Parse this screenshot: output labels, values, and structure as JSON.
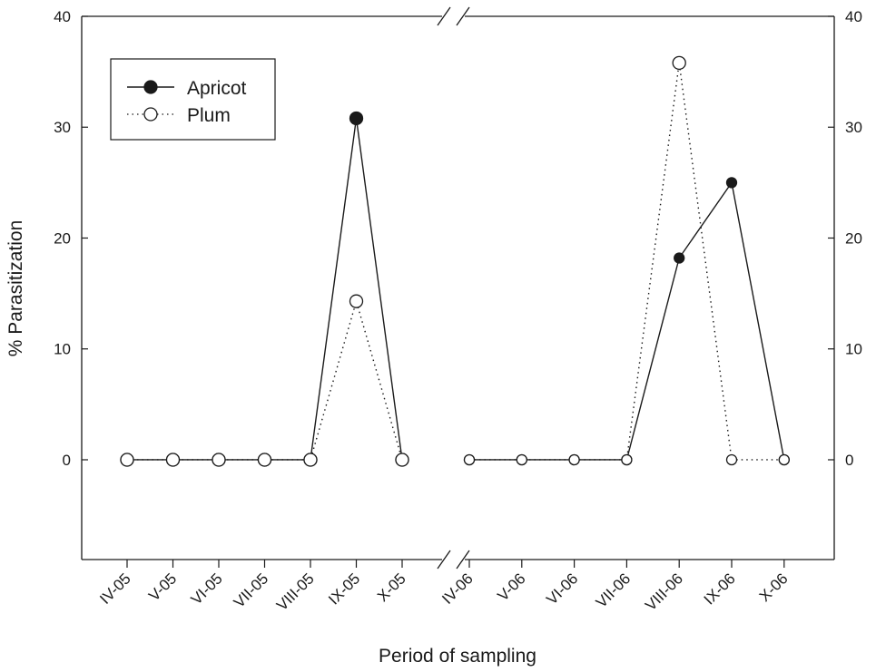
{
  "chart_data": {
    "type": "line",
    "title": "",
    "xlabel": "Period of sampling",
    "ylabel": "% Parasitization",
    "ylim": [
      -9,
      40
    ],
    "y_ticks": [
      0,
      10,
      20,
      30,
      40
    ],
    "y_tick_labels": [
      "0",
      "10",
      "20",
      "30",
      "40"
    ],
    "right_axis_labels": true,
    "axis_break_between": [
      "X-05",
      "IV-06"
    ],
    "legend_position": "top-left",
    "groups": [
      {
        "categories": [
          "IV-05",
          "V-05",
          "VI-05",
          "VII-05",
          "VIII-05",
          "IX-05",
          "X-05"
        ]
      },
      {
        "categories": [
          "IV-06",
          "V-06",
          "VI-06",
          "VII-06",
          "VIII-06",
          "IX-06",
          "X-06"
        ]
      }
    ],
    "series": [
      {
        "name": "Apricot",
        "line_style": "solid",
        "marker": "filled-circle",
        "color": "#1a1a1a",
        "groups": [
          [
            0,
            0,
            0,
            0,
            0,
            30.8,
            0
          ],
          [
            0,
            0,
            0,
            0,
            18.2,
            25.0,
            0
          ]
        ]
      },
      {
        "name": "Plum",
        "line_style": "dotted",
        "marker": "open-circle",
        "color": "#1a1a1a",
        "groups": [
          [
            0,
            0,
            0,
            0,
            0,
            14.3,
            0
          ],
          [
            0,
            0,
            0,
            0,
            35.8,
            0,
            0
          ]
        ]
      }
    ]
  }
}
